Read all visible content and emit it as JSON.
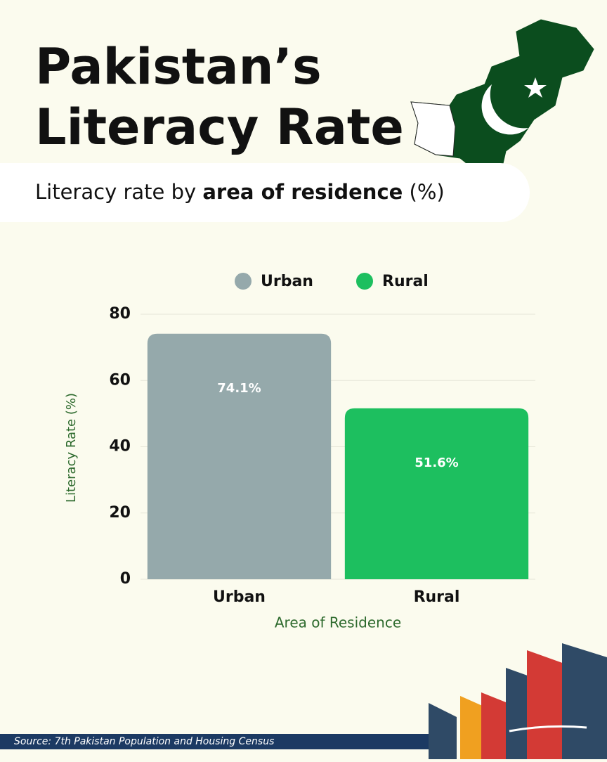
{
  "chart_data": {
    "type": "bar",
    "title": [
      "Pakistan’s",
      "Literacy Rate"
    ],
    "subtitle": [
      "Literacy rate by",
      "area of residence",
      "(%)"
    ],
    "categories": [
      "Urban",
      "Rural"
    ],
    "values": [
      74.1,
      51.6
    ],
    "value_labels": [
      "74.1%",
      "51.6%"
    ],
    "colors": [
      "#95a9ab",
      "#1dbf5f"
    ],
    "ylabel": "Literacy Rate (%)",
    "xlabel": "Area of Residence",
    "ylim": [
      0,
      80
    ],
    "yticks": [
      0,
      20,
      40,
      60,
      80
    ],
    "grid": true,
    "source": "Source: 7th Pakistan Population and Housing Census"
  }
}
